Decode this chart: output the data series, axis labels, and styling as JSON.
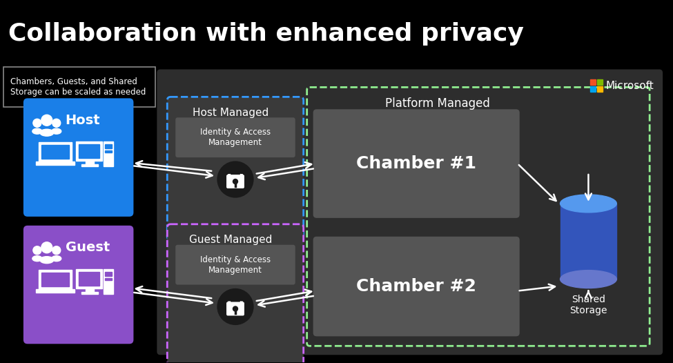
{
  "title": "Collaboration with enhanced privacy",
  "bg_color": "#000000",
  "diagram_bg": "#2d2d2d",
  "title_color": "#ffffff",
  "title_fontsize": 26,
  "note_text": "Chambers, Guests, and Shared\nStorage can be scaled as needed",
  "host_label": "Host",
  "guest_label": "Guest",
  "host_color": "#1a7fe8",
  "guest_color": "#8a4fc8",
  "host_managed_label": "Host Managed",
  "guest_managed_label": "Guest Managed",
  "platform_managed_label": "Platform Managed",
  "iam_label": "Identity & Access\nManagement",
  "chamber1_label": "Chamber #1",
  "chamber2_label": "Chamber #2",
  "shared_storage_label": "Shared\nStorage",
  "ms_color_red": "#f25022",
  "ms_color_green": "#7fba00",
  "ms_color_blue": "#00a4ef",
  "ms_color_yellow": "#ffb900",
  "microsoft_label": "Microsoft",
  "dashed_blue": "#3399ff",
  "dashed_green": "#90ee90",
  "dashed_purple": "#cc66ff",
  "chamber_bg": "#555555",
  "iam_bg": "#555555",
  "lock_bg": "#1a1a1a",
  "storage_top": "#5599ee",
  "storage_body": "#3355bb",
  "storage_bottom": "#6677cc"
}
